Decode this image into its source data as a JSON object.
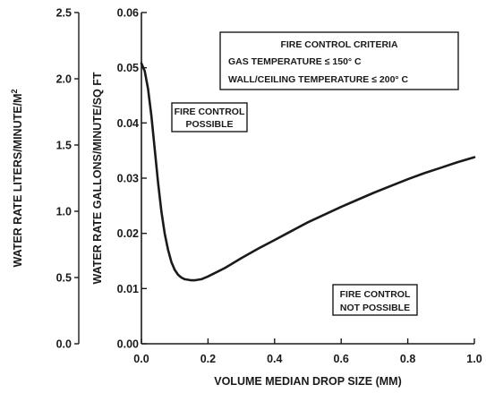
{
  "chart_data": {
    "type": "line",
    "xlabel": "VOLUME MEDIAN DROP SIZE (MM)",
    "ylabel": "WATER RATE GALLONS/MINUTE/SQ FT",
    "y2label_main": "WATER RATE LITERS/MINUTE/M",
    "y2label_sup": "2",
    "xlim": [
      0,
      1.0
    ],
    "ylim": [
      0,
      0.06
    ],
    "y2lim": [
      0,
      2.5
    ],
    "x_ticks": [
      "0.0",
      "0.2",
      "0.4",
      "0.6",
      "0.8",
      "1.0"
    ],
    "y_ticks": [
      "0.00",
      "0.01",
      "0.02",
      "0.03",
      "0.04",
      "0.05",
      "0.06"
    ],
    "y2_ticks": [
      "0.0",
      "0.5",
      "1.0",
      "1.5",
      "2.0",
      "2.5"
    ],
    "grid": false,
    "series": [
      {
        "x": [
          0.0,
          0.01,
          0.02,
          0.03,
          0.04,
          0.05,
          0.06,
          0.07,
          0.08,
          0.09,
          0.1,
          0.11,
          0.12,
          0.13,
          0.14,
          0.15,
          0.16,
          0.18,
          0.2,
          0.25,
          0.3,
          0.35,
          0.4,
          0.45,
          0.5,
          0.55,
          0.6,
          0.65,
          0.7,
          0.75,
          0.8,
          0.85,
          0.9,
          0.95,
          1.0
        ],
        "y": [
          0.0508,
          0.0494,
          0.0462,
          0.0412,
          0.0352,
          0.0292,
          0.024,
          0.02,
          0.017,
          0.0148,
          0.0134,
          0.0125,
          0.012,
          0.0117,
          0.0116,
          0.0115,
          0.0115,
          0.0117,
          0.0122,
          0.0137,
          0.0155,
          0.0172,
          0.0188,
          0.0204,
          0.022,
          0.0234,
          0.0248,
          0.0261,
          0.0274,
          0.0286,
          0.0298,
          0.0309,
          0.0319,
          0.0329,
          0.0338
        ],
        "color": "#1a1a1a"
      }
    ],
    "annotations": {
      "criteria_title": "FIRE CONTROL CRITERIA",
      "criteria_line1": "GAS TEMPERATURE ≤ 150° C",
      "criteria_line2": "WALL/CEILING TEMPERATURE ≤ 200° C",
      "possible_line1": "FIRE  CONTROL",
      "possible_line2": "POSSIBLE",
      "not_possible_line1": "FIRE CONTROL",
      "not_possible_line2": "NOT POSSIBLE"
    }
  }
}
